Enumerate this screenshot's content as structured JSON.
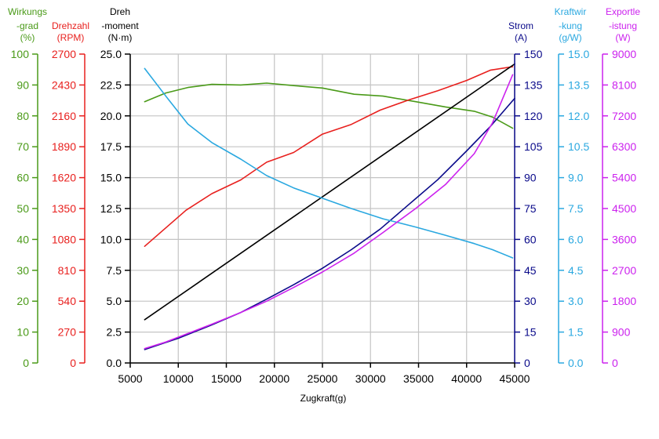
{
  "chart_data": {
    "type": "line",
    "xlabel": "Zugkraft(g)",
    "x_ticks": [
      5000,
      10000,
      15000,
      20000,
      25000,
      30000,
      35000,
      40000,
      45000
    ],
    "xlim": [
      5000,
      45000
    ],
    "grid": true,
    "axes": [
      {
        "id": "wirkungsgrad",
        "title": [
          "Wirkungs",
          "-grad",
          "(%)"
        ],
        "color": "#4a9a18",
        "ylim": [
          0,
          100
        ],
        "ticks": [
          "0",
          "10",
          "20",
          "30",
          "40",
          "50",
          "60",
          "70",
          "80",
          "90",
          "100"
        ]
      },
      {
        "id": "drehzahl",
        "title": [
          "Drehzahl",
          "(RPM)"
        ],
        "color": "#e8201e",
        "ylim": [
          0,
          2700
        ],
        "ticks": [
          "0",
          "270",
          "540",
          "810",
          "1080",
          "1350",
          "1620",
          "1890",
          "2160",
          "2430",
          "2700"
        ]
      },
      {
        "id": "drehmoment",
        "title": [
          "Dreh",
          "-moment",
          "(N·m)"
        ],
        "color": "#000000",
        "ylim": [
          0,
          25
        ],
        "ticks": [
          "0.0",
          "2.5",
          "5.0",
          "7.5",
          "10.0",
          "12.5",
          "15.0",
          "17.5",
          "20.0",
          "22.5",
          "25.0"
        ]
      },
      {
        "id": "strom",
        "title": [
          "Strom",
          "(A)"
        ],
        "color": "#0a0a8a",
        "ylim": [
          0,
          150
        ],
        "ticks": [
          "0",
          "15",
          "30",
          "45",
          "60",
          "75",
          "90",
          "105",
          "120",
          "135",
          "150"
        ]
      },
      {
        "id": "kraftwirkung",
        "title": [
          "Kraftwir",
          "-kung",
          "(g/W)"
        ],
        "color": "#2aa8e0",
        "ylim": [
          0,
          15
        ],
        "ticks": [
          "0.0",
          "1.5",
          "3.0",
          "4.5",
          "6.0",
          "7.5",
          "9.0",
          "10.5",
          "12.0",
          "13.5",
          "15.0"
        ]
      },
      {
        "id": "exportleistung",
        "title": [
          "Exportle",
          "-istung",
          "(W)"
        ],
        "color": "#cc22ee",
        "ylim": [
          0,
          9000
        ],
        "ticks": [
          "0",
          "900",
          "1800",
          "2700",
          "3600",
          "4500",
          "5400",
          "6300",
          "7200",
          "8100",
          "9000"
        ]
      }
    ],
    "series": [
      {
        "axis": "wirkungsgrad",
        "color": "#4a9a18",
        "points": [
          [
            6500,
            84.6
          ],
          [
            8700,
            87.4
          ],
          [
            11000,
            89.2
          ],
          [
            13500,
            90.2
          ],
          [
            16500,
            90.0
          ],
          [
            19200,
            90.6
          ],
          [
            22000,
            89.8
          ],
          [
            25000,
            89.0
          ],
          [
            28300,
            87.0
          ],
          [
            31300,
            86.4
          ],
          [
            34700,
            84.6
          ],
          [
            37800,
            82.9
          ],
          [
            40800,
            81.5
          ],
          [
            42700,
            79.6
          ],
          [
            44800,
            76.0
          ]
        ]
      },
      {
        "axis": "drehzahl",
        "color": "#e8201e",
        "points": [
          [
            6500,
            1020
          ],
          [
            10800,
            1335
          ],
          [
            13500,
            1480
          ],
          [
            16500,
            1600
          ],
          [
            19200,
            1755
          ],
          [
            22000,
            1840
          ],
          [
            25000,
            2000
          ],
          [
            28000,
            2085
          ],
          [
            31000,
            2210
          ],
          [
            34000,
            2300
          ],
          [
            37000,
            2380
          ],
          [
            40000,
            2470
          ],
          [
            42500,
            2560
          ],
          [
            44800,
            2590
          ]
        ]
      },
      {
        "axis": "drehmoment",
        "color": "#000000",
        "points": [
          [
            6500,
            3.5
          ],
          [
            45000,
            24.2
          ]
        ]
      },
      {
        "axis": "strom",
        "color": "#0a0a8a",
        "points": [
          [
            6500,
            6.5
          ],
          [
            10000,
            12.0
          ],
          [
            13500,
            18.5
          ],
          [
            16500,
            24.5
          ],
          [
            19200,
            31.0
          ],
          [
            22000,
            38.0
          ],
          [
            25000,
            46.0
          ],
          [
            28000,
            55.0
          ],
          [
            31000,
            65.0
          ],
          [
            34000,
            77.0
          ],
          [
            37000,
            89.0
          ],
          [
            40000,
            103.0
          ],
          [
            42500,
            115.0
          ],
          [
            45000,
            128.5
          ]
        ]
      },
      {
        "axis": "kraftwirkung",
        "color": "#2aa8e0",
        "points": [
          [
            6500,
            14.3
          ],
          [
            8800,
            12.9
          ],
          [
            11000,
            11.6
          ],
          [
            13500,
            10.7
          ],
          [
            16500,
            9.9
          ],
          [
            19200,
            9.1
          ],
          [
            22000,
            8.5
          ],
          [
            25000,
            8.0
          ],
          [
            28000,
            7.5
          ],
          [
            31300,
            7.0
          ],
          [
            34700,
            6.6
          ],
          [
            37800,
            6.2
          ],
          [
            40800,
            5.8
          ],
          [
            42700,
            5.5
          ],
          [
            44800,
            5.1
          ]
        ]
      },
      {
        "axis": "exportleistung",
        "color": "#cc22ee",
        "points": [
          [
            6500,
            420
          ],
          [
            8700,
            610
          ],
          [
            11000,
            860
          ],
          [
            13500,
            1130
          ],
          [
            16500,
            1470
          ],
          [
            19200,
            1800
          ],
          [
            22000,
            2200
          ],
          [
            25000,
            2650
          ],
          [
            28300,
            3200
          ],
          [
            31300,
            3800
          ],
          [
            34700,
            4500
          ],
          [
            37800,
            5200
          ],
          [
            40800,
            6100
          ],
          [
            42700,
            7000
          ],
          [
            44800,
            8400
          ]
        ]
      }
    ]
  }
}
